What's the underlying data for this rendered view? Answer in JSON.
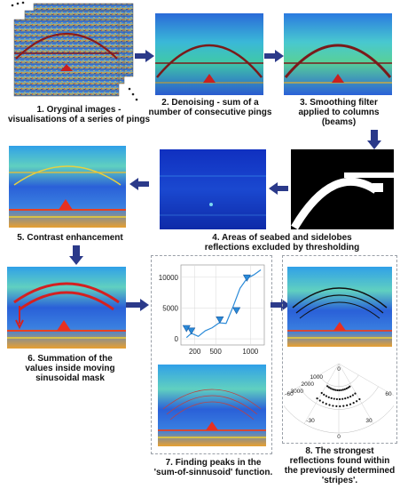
{
  "steps": [
    {
      "caption": "1. Oryginal images -\nvisualisations of a series of pings"
    },
    {
      "caption": "2. Denoising - sum of a\nnumber of consecutive pings"
    },
    {
      "caption": "3. Smoothing filter\napplied to columns\n(beams)"
    },
    {
      "caption": "4. Areas of seabed and sidelobes\nreflections excluded by thresholding"
    },
    {
      "caption": "5. Contrast enhancement"
    },
    {
      "caption": "6. Summation of the\nvalues inside moving\nsinusoidal mask"
    },
    {
      "caption": "7. Finding peaks in the\n'sum-of-sinnusoid' function."
    },
    {
      "caption": "8. The strongest\nreflections found within\nthe previously determined\n'stripes'."
    }
  ],
  "colors": {
    "arrow": "#2b3a8a",
    "seabed": "#8b1a1a",
    "mask": "#d42020",
    "curve": "#2a8ad8",
    "peak": "#2a8ad8"
  },
  "chart_data": [
    {
      "type": "line",
      "x_ticks": [
        "200",
        "500",
        "1000"
      ],
      "y_ticks": [
        "0",
        "5000",
        "10000"
      ],
      "xlim": [
        0,
        1200
      ],
      "ylim": [
        -1000,
        12000
      ],
      "series": [
        {
          "x": [
            80,
            150,
            250,
            350,
            450,
            550,
            650,
            750,
            850,
            950,
            1050,
            1150
          ],
          "y": [
            200,
            900,
            400,
            1300,
            1800,
            2600,
            2500,
            5200,
            8200,
            9800,
            10400,
            11200
          ]
        }
      ],
      "peaks": {
        "x": [
          80,
          150,
          560,
          800,
          950
        ],
        "y": [
          1600,
          1200,
          3000,
          4500,
          9800
        ]
      }
    },
    {
      "type": "scatter",
      "radial_ticks": [
        "1000",
        "2000",
        "3000"
      ],
      "angle_ticks": [
        "0",
        "-30",
        "30",
        "-60",
        "60"
      ]
    }
  ]
}
